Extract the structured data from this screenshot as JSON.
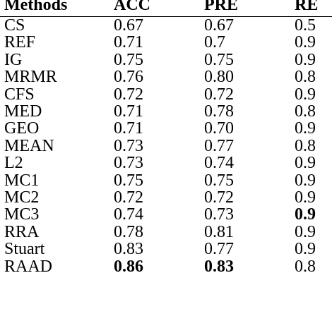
{
  "table": {
    "headers": [
      "Methods",
      "ACC",
      "PRE",
      "RE"
    ],
    "rows": [
      {
        "method": "CS",
        "acc": "0.67",
        "pre": "0.67",
        "re": "0.5"
      },
      {
        "method": "REF",
        "acc": "0.71",
        "pre": "0.7",
        "re": "0.9"
      },
      {
        "method": "IG",
        "acc": "0.75",
        "pre": "0.75",
        "re": "0.9"
      },
      {
        "method": "MRMR",
        "acc": "0.76",
        "pre": "0.80",
        "re": "0.8"
      },
      {
        "method": "CFS",
        "acc": "0.72",
        "pre": "0.72",
        "re": "0.9"
      },
      {
        "method": "MED",
        "acc": "0.71",
        "pre": "0.78",
        "re": "0.8"
      },
      {
        "method": "GEO",
        "acc": "0.71",
        "pre": "0.70",
        "re": "0.9"
      },
      {
        "method": "MEAN",
        "acc": "0.73",
        "pre": "0.77",
        "re": "0.8"
      },
      {
        "method": "L2",
        "acc": "0.73",
        "pre": "0.74",
        "re": "0.9"
      },
      {
        "method": "MC1",
        "acc": "0.75",
        "pre": "0.75",
        "re": "0.9"
      },
      {
        "method": "MC2",
        "acc": "0.72",
        "pre": "0.72",
        "re": "0.9"
      },
      {
        "method": "MC3",
        "acc": "0.74",
        "pre": "0.73",
        "re": "0.9"
      },
      {
        "method": "RRA",
        "acc": "0.78",
        "pre": "0.81",
        "re": "0.9"
      },
      {
        "method": "Stuart",
        "acc": "0.83",
        "pre": "0.77",
        "re": "0.9"
      },
      {
        "method": "RAAD",
        "acc": "0.86",
        "pre": "0.83",
        "re": "0.8"
      }
    ],
    "bold_cells": [
      {
        "row": 11,
        "col": "re"
      },
      {
        "row": 14,
        "col": "acc"
      },
      {
        "row": 14,
        "col": "pre"
      }
    ]
  }
}
